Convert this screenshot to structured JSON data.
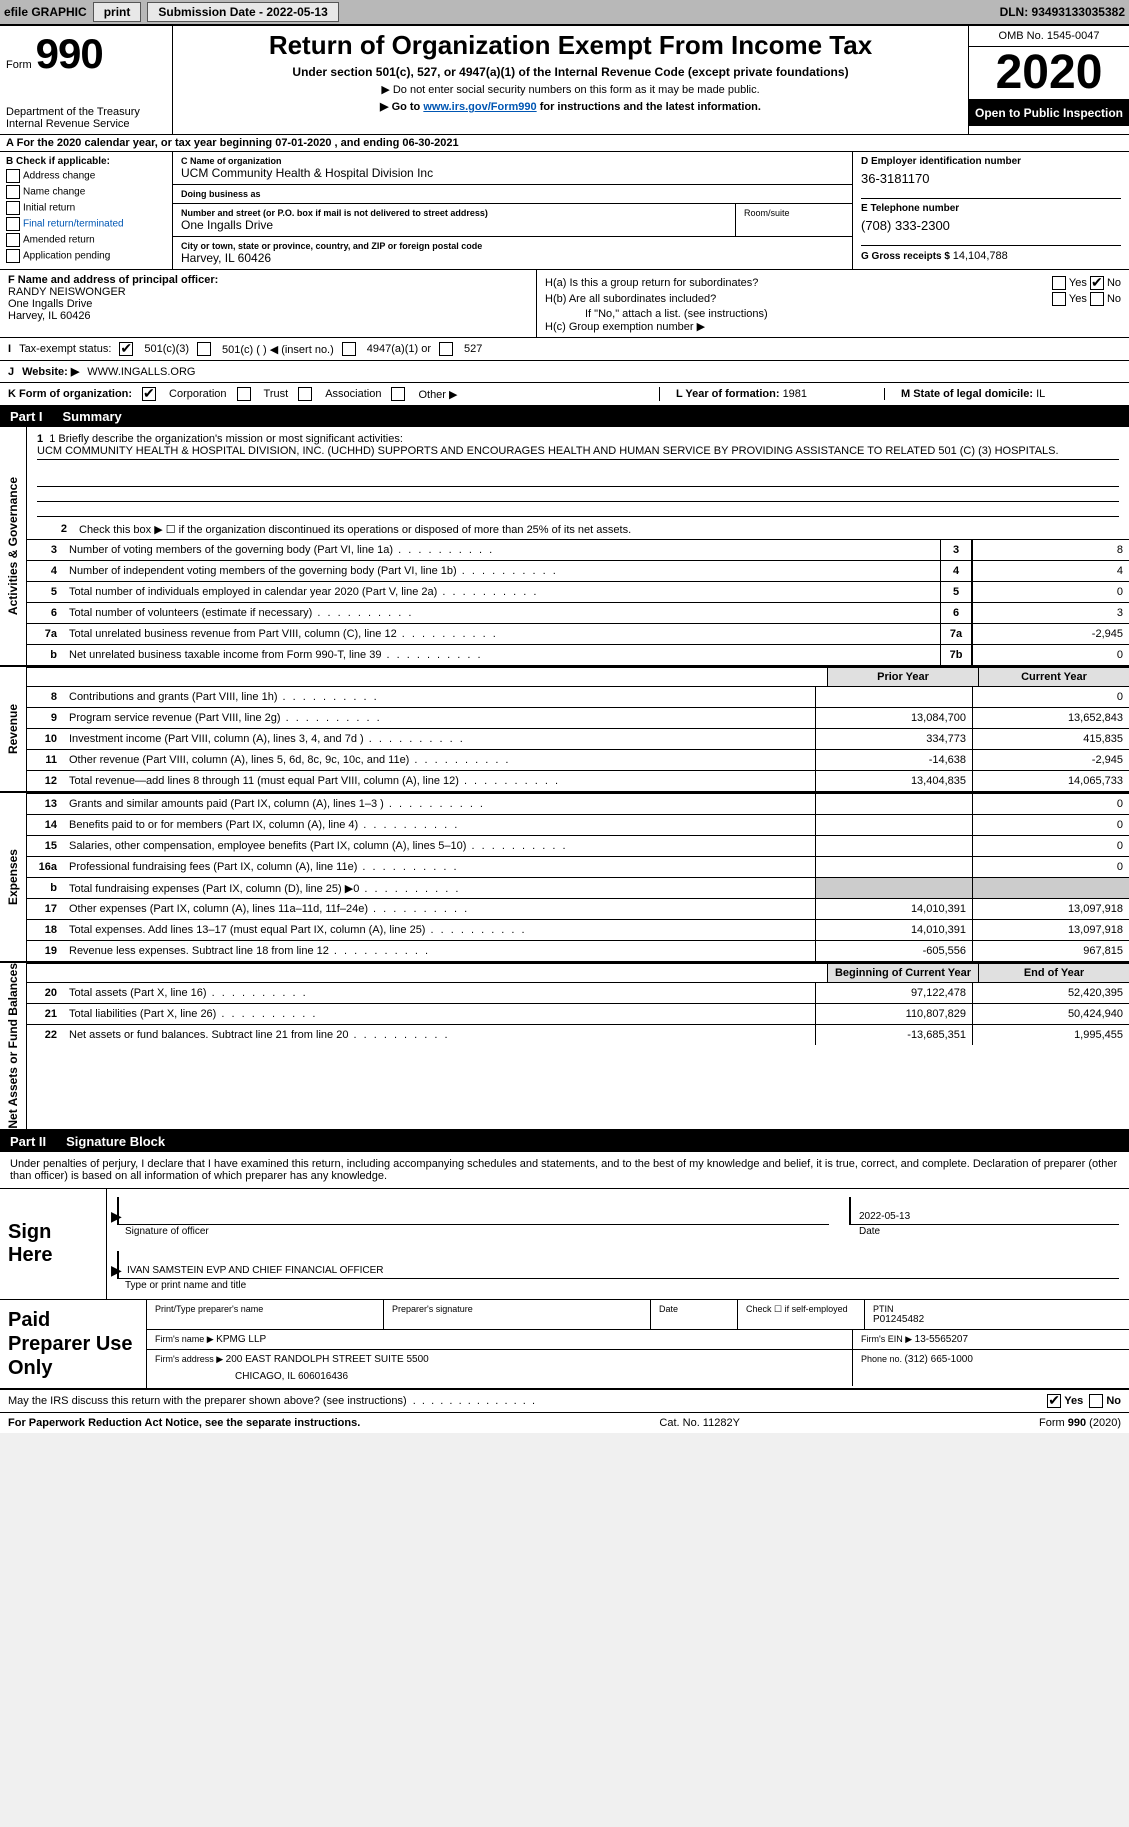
{
  "topbar": {
    "efile": "efile GRAPHIC",
    "print": "print",
    "submission_label": "Submission Date - 2022-05-13",
    "dln": "DLN: 93493133035382"
  },
  "header": {
    "form_word": "Form",
    "form_num": "990",
    "dept": "Department of the Treasury\nInternal Revenue Service",
    "title": "Return of Organization Exempt From Income Tax",
    "sub1": "Under section 501(c), 527, or 4947(a)(1) of the Internal Revenue Code (except private foundations)",
    "sub2": "▶ Do not enter social security numbers on this form as it may be made public.",
    "sub3_pre": "▶ Go to ",
    "sub3_link": "www.irs.gov/Form990",
    "sub3_post": " for instructions and the latest information.",
    "omb": "OMB No. 1545-0047",
    "year": "2020",
    "open_public": "Open to Public Inspection"
  },
  "lineA": "For the 2020 calendar year, or tax year beginning 07-01-2020    , and ending 06-30-2021",
  "boxB": {
    "heading": "B Check if applicable:",
    "items": [
      "Address change",
      "Name change",
      "Initial return",
      "Final return/terminated",
      "Amended return",
      "Application pending"
    ]
  },
  "boxC": {
    "name_label": "C Name of organization",
    "name": "UCM Community Health & Hospital Division Inc",
    "dba_label": "Doing business as",
    "dba": "",
    "addr_label": "Number and street (or P.O. box if mail is not delivered to street address)",
    "addr": "One Ingalls Drive",
    "room_label": "Room/suite",
    "city_label": "City or town, state or province, country, and ZIP or foreign postal code",
    "city": "Harvey, IL  60426"
  },
  "boxD": {
    "ein_label": "D Employer identification number",
    "ein": "36-3181170",
    "phone_label": "E Telephone number",
    "phone": "(708) 333-2300",
    "gross_label": "G Gross receipts $ ",
    "gross": "14,104,788"
  },
  "boxF": {
    "label": "F Name and address of principal officer:",
    "name": "RANDY NEISWONGER",
    "addr1": "One Ingalls Drive",
    "addr2": "Harvey, IL  60426"
  },
  "boxH": {
    "ha": "H(a)  Is this a group return for subordinates?",
    "hb": "H(b)  Are all subordinates included?",
    "hb_note": "If \"No,\" attach a list. (see instructions)",
    "hc": "H(c)  Group exemption number ▶"
  },
  "rowI": {
    "label": "Tax-exempt status:",
    "o1": "501(c)(3)",
    "o2": "501(c) (   ) ◀ (insert no.)",
    "o3": "4947(a)(1) or",
    "o4": "527"
  },
  "rowJ": {
    "label": "Website: ▶",
    "val": "WWW.INGALLS.ORG"
  },
  "rowK": {
    "label": "K Form of organization:",
    "corp": "Corporation",
    "trust": "Trust",
    "assoc": "Association",
    "other": "Other ▶"
  },
  "rowL": {
    "label": "L Year of formation: ",
    "val": "1981"
  },
  "rowM": {
    "label": "M State of legal domicile: ",
    "val": "IL"
  },
  "partI": {
    "tag": "Part I",
    "title": "Summary"
  },
  "summary": {
    "l1_label": "1  Briefly describe the organization's mission or most significant activities:",
    "l1_text": "UCM COMMUNITY HEALTH & HOSPITAL DIVISION, INC. (UCHHD) SUPPORTS AND ENCOURAGES HEALTH AND HUMAN SERVICE BY PROVIDING ASSISTANCE TO RELATED 501 (C) (3) HOSPITALS.",
    "l2": "Check this box ▶ ☐  if the organization discontinued its operations or disposed of more than 25% of its net assets.",
    "rows_gov": [
      {
        "n": "3",
        "t": "Number of voting members of the governing body (Part VI, line 1a)",
        "box": "3",
        "v": "8"
      },
      {
        "n": "4",
        "t": "Number of independent voting members of the governing body (Part VI, line 1b)",
        "box": "4",
        "v": "4"
      },
      {
        "n": "5",
        "t": "Total number of individuals employed in calendar year 2020 (Part V, line 2a)",
        "box": "5",
        "v": "0"
      },
      {
        "n": "6",
        "t": "Total number of volunteers (estimate if necessary)",
        "box": "6",
        "v": "3"
      },
      {
        "n": "7a",
        "t": "Total unrelated business revenue from Part VIII, column (C), line 12",
        "box": "7a",
        "v": "-2,945"
      },
      {
        "n": "b",
        "t": "Net unrelated business taxable income from Form 990-T, line 39",
        "box": "7b",
        "v": "0"
      }
    ],
    "prior_year": "Prior Year",
    "current_year": "Current Year",
    "rows_rev": [
      {
        "n": "8",
        "t": "Contributions and grants (Part VIII, line 1h)",
        "py": "",
        "cy": "0"
      },
      {
        "n": "9",
        "t": "Program service revenue (Part VIII, line 2g)",
        "py": "13,084,700",
        "cy": "13,652,843"
      },
      {
        "n": "10",
        "t": "Investment income (Part VIII, column (A), lines 3, 4, and 7d )",
        "py": "334,773",
        "cy": "415,835"
      },
      {
        "n": "11",
        "t": "Other revenue (Part VIII, column (A), lines 5, 6d, 8c, 9c, 10c, and 11e)",
        "py": "-14,638",
        "cy": "-2,945"
      },
      {
        "n": "12",
        "t": "Total revenue—add lines 8 through 11 (must equal Part VIII, column (A), line 12)",
        "py": "13,404,835",
        "cy": "14,065,733"
      }
    ],
    "rows_exp": [
      {
        "n": "13",
        "t": "Grants and similar amounts paid (Part IX, column (A), lines 1–3 )",
        "py": "",
        "cy": "0"
      },
      {
        "n": "14",
        "t": "Benefits paid to or for members (Part IX, column (A), line 4)",
        "py": "",
        "cy": "0"
      },
      {
        "n": "15",
        "t": "Salaries, other compensation, employee benefits (Part IX, column (A), lines 5–10)",
        "py": "",
        "cy": "0"
      },
      {
        "n": "16a",
        "t": "Professional fundraising fees (Part IX, column (A), line 11e)",
        "py": "",
        "cy": "0"
      },
      {
        "n": "b",
        "t": "Total fundraising expenses (Part IX, column (D), line 25) ▶0",
        "py": "shaded",
        "cy": "shaded"
      },
      {
        "n": "17",
        "t": "Other expenses (Part IX, column (A), lines 11a–11d, 11f–24e)",
        "py": "14,010,391",
        "cy": "13,097,918"
      },
      {
        "n": "18",
        "t": "Total expenses. Add lines 13–17 (must equal Part IX, column (A), line 25)",
        "py": "14,010,391",
        "cy": "13,097,918"
      },
      {
        "n": "19",
        "t": "Revenue less expenses. Subtract line 18 from line 12",
        "py": "-605,556",
        "cy": "967,815"
      }
    ],
    "begin_year": "Beginning of Current Year",
    "end_year": "End of Year",
    "rows_net": [
      {
        "n": "20",
        "t": "Total assets (Part X, line 16)",
        "py": "97,122,478",
        "cy": "52,420,395"
      },
      {
        "n": "21",
        "t": "Total liabilities (Part X, line 26)",
        "py": "110,807,829",
        "cy": "50,424,940"
      },
      {
        "n": "22",
        "t": "Net assets or fund balances. Subtract line 21 from line 20",
        "py": "-13,685,351",
        "cy": "1,995,455"
      }
    ]
  },
  "sides": {
    "gov": "Activities & Governance",
    "rev": "Revenue",
    "exp": "Expenses",
    "net": "Net Assets or Fund Balances"
  },
  "partII": {
    "tag": "Part II",
    "title": "Signature Block"
  },
  "sig": {
    "penalties": "Under penalties of perjury, I declare that I have examined this return, including accompanying schedules and statements, and to the best of my knowledge and belief, it is true, correct, and complete. Declaration of preparer (other than officer) is based on all information of which preparer has any knowledge.",
    "sign_here": "Sign Here",
    "sig_of_officer": "Signature of officer",
    "date_label": "Date",
    "date_val": "2022-05-13",
    "name_title": "IVAN SAMSTEIN EVP AND CHIEF FINANCIAL OFFICER",
    "name_caption": "Type or print name and title"
  },
  "paid": {
    "heading": "Paid Preparer Use Only",
    "r1": {
      "c1_lbl": "Print/Type preparer's name",
      "c1": "",
      "c2_lbl": "Preparer's signature",
      "c2": "",
      "c3_lbl": "Date",
      "c3": "",
      "c4_lbl": "Check ☐ if self-employed",
      "c5_lbl": "PTIN",
      "c5": "P01245482"
    },
    "r2": {
      "c1_lbl": "Firm's name    ▶ ",
      "c1": "KPMG LLP",
      "c2_lbl": "Firm's EIN ▶ ",
      "c2": "13-5565207"
    },
    "r3": {
      "c1_lbl": "Firm's address ▶ ",
      "c1": "200 EAST RANDOLPH STREET SUITE 5500",
      "c1b": "CHICAGO, IL  606016436",
      "c2_lbl": "Phone no. ",
      "c2": "(312) 665-1000"
    }
  },
  "may_irs": "May the IRS discuss this return with the preparer shown above? (see instructions)",
  "footer": {
    "left": "For Paperwork Reduction Act Notice, see the separate instructions.",
    "mid": "Cat. No. 11282Y",
    "right": "Form 990 (2020)"
  }
}
